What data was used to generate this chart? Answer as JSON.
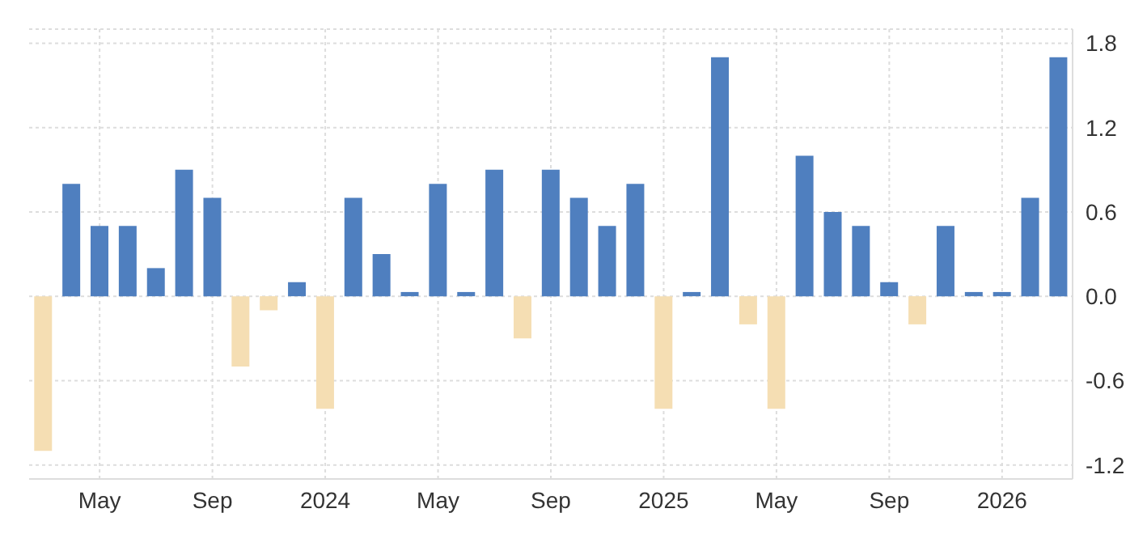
{
  "chart_data": {
    "type": "bar",
    "categories": [
      null,
      null,
      "May",
      null,
      null,
      null,
      "Sep",
      null,
      null,
      null,
      "2024",
      null,
      null,
      null,
      "May",
      null,
      null,
      null,
      "Sep",
      null,
      null,
      null,
      "2025",
      null,
      null,
      null,
      "May",
      null,
      null,
      null,
      "Sep",
      null,
      null,
      null,
      "2026",
      null,
      null
    ],
    "values": [
      -1.1,
      0.8,
      0.5,
      0.5,
      0.2,
      0.9,
      0.7,
      -0.5,
      -0.1,
      0.1,
      -0.8,
      0.7,
      0.3,
      0.03,
      0.8,
      0.03,
      0.9,
      -0.3,
      0.9,
      0.7,
      0.5,
      0.8,
      -0.8,
      0.03,
      1.7,
      -0.2,
      -0.8,
      1.0,
      0.6,
      0.5,
      0.1,
      -0.2,
      0.5,
      0.03,
      0.03,
      0.7,
      1.7
    ],
    "colors": [
      "#f5deb3",
      "#4f7fbf",
      "#4f7fbf",
      "#4f7fbf",
      "#4f7fbf",
      "#4f7fbf",
      "#4f7fbf",
      "#f5deb3",
      "#f5deb3",
      "#4f7fbf",
      "#f5deb3",
      "#4f7fbf",
      "#4f7fbf",
      "#4f7fbf",
      "#4f7fbf",
      "#4f7fbf",
      "#4f7fbf",
      "#f5deb3",
      "#4f7fbf",
      "#4f7fbf",
      "#4f7fbf",
      "#4f7fbf",
      "#f5deb3",
      "#4f7fbf",
      "#4f7fbf",
      "#f5deb3",
      "#f5deb3",
      "#4f7fbf",
      "#4f7fbf",
      "#4f7fbf",
      "#4f7fbf",
      "#f5deb3",
      "#4f7fbf",
      "#4f7fbf",
      "#4f7fbf",
      "#4f7fbf",
      "#4f7fbf"
    ],
    "ylim": [
      -1.3,
      1.9
    ],
    "yticks": [
      -1.2,
      -0.6,
      {
        "value": 0,
        "label": "0.0"
      },
      0.6,
      1.2,
      1.8
    ],
    "grid": true
  }
}
